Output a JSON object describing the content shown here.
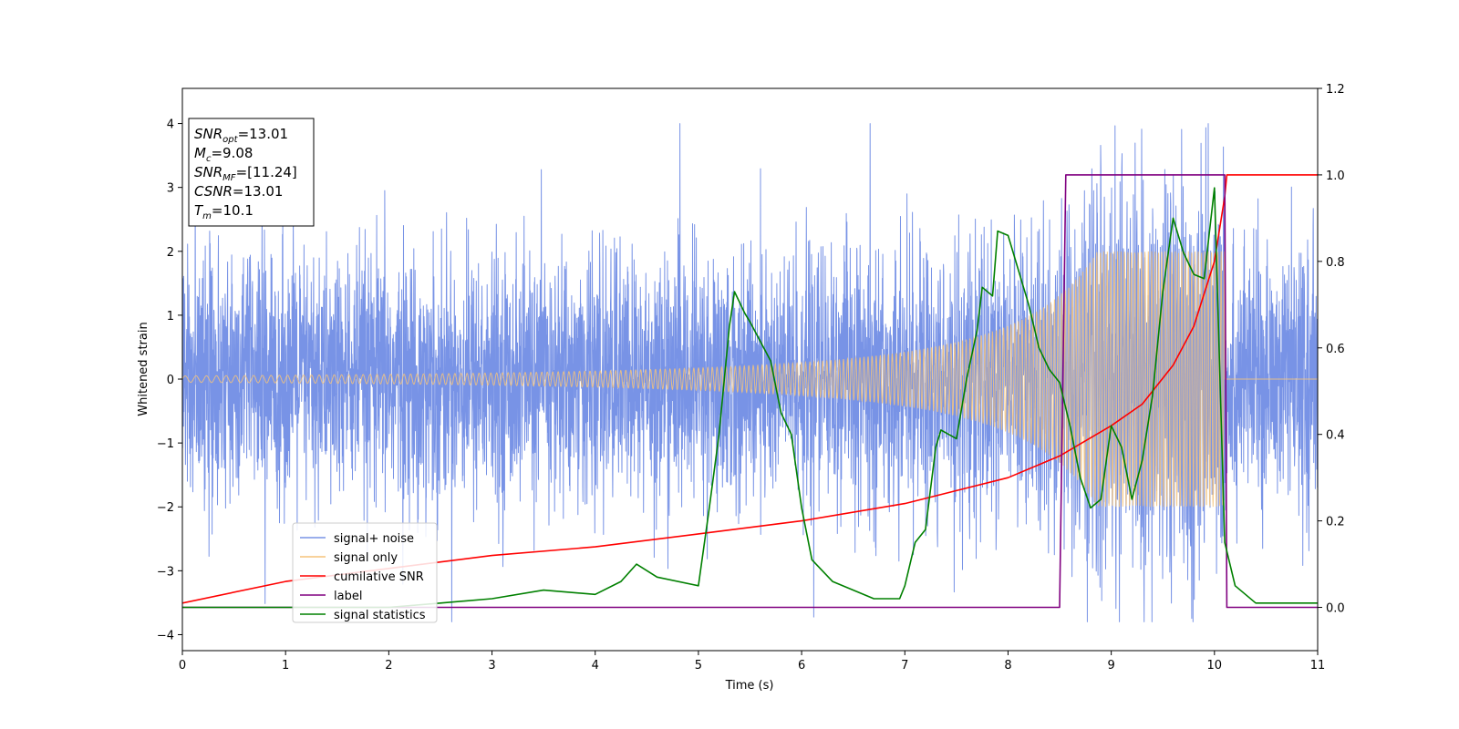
{
  "chart_data": {
    "type": "line",
    "title": "",
    "xlabel": "Time (s)",
    "ylabel": "Whitened strain",
    "xlim": [
      0,
      11
    ],
    "ylim": [
      -4.25,
      4.55
    ],
    "y2lim": [
      -0.1,
      1.2
    ],
    "x_ticks": [
      0,
      1,
      2,
      3,
      4,
      5,
      6,
      7,
      8,
      9,
      10,
      11
    ],
    "y_ticks": [
      -4,
      -3,
      -2,
      -1,
      0,
      1,
      2,
      3,
      4
    ],
    "y2_ticks": [
      0.0,
      0.2,
      0.4,
      0.6,
      0.8,
      1.0,
      1.2
    ],
    "grid": false,
    "legend_position": "lower-left",
    "annotation_lines": [
      {
        "base": "SNR",
        "sub": "opt",
        "value": "=13.01"
      },
      {
        "base": "M",
        "sub": "c",
        "value": "=9.08"
      },
      {
        "base": "SNR",
        "sub": "MF",
        "value": "=[11.24]"
      },
      {
        "base": "CSNR",
        "sub": "",
        "value": "=13.01"
      },
      {
        "base": "T",
        "sub": "m",
        "value": "=10.1"
      }
    ],
    "series": [
      {
        "name": "signal+ noise",
        "color": "#7893e6",
        "axis": "left",
        "description_values": {
          "std": 1.0,
          "range": [
            -3.8,
            4.0
          ]
        }
      },
      {
        "name": "signal only",
        "color": "#f5c37a",
        "axis": "left",
        "chirp": {
          "merger_time": 10.1,
          "start_amplitude": 0.05,
          "peak_amplitude": 2.0
        }
      },
      {
        "name": "cumilative SNR",
        "color": "#ff0000",
        "axis": "right",
        "x": [
          0,
          1,
          2,
          3,
          4,
          5,
          6,
          7,
          7.5,
          8,
          8.5,
          9,
          9.3,
          9.6,
          9.8,
          10.0,
          10.1,
          10.12,
          11
        ],
        "y": [
          0.01,
          0.06,
          0.09,
          0.12,
          0.14,
          0.17,
          0.2,
          0.24,
          0.27,
          0.3,
          0.35,
          0.42,
          0.47,
          0.56,
          0.65,
          0.8,
          0.95,
          1.0,
          1.0
        ]
      },
      {
        "name": "label",
        "color": "#800080",
        "axis": "right",
        "x": [
          0,
          8.5,
          8.56,
          10.1,
          10.12,
          11
        ],
        "y": [
          0,
          0,
          1,
          1,
          0,
          0
        ]
      },
      {
        "name": "signal statistics",
        "color": "#008000",
        "axis": "right",
        "x": [
          0,
          1,
          2,
          2.5,
          3,
          3.5,
          4,
          4.25,
          4.4,
          4.6,
          5.0,
          5.1,
          5.2,
          5.3,
          5.35,
          5.45,
          5.5,
          5.7,
          5.8,
          5.9,
          6.0,
          6.1,
          6.3,
          6.7,
          6.95,
          7.0,
          7.1,
          7.2,
          7.3,
          7.35,
          7.5,
          7.6,
          7.7,
          7.75,
          7.85,
          7.9,
          8.0,
          8.2,
          8.3,
          8.4,
          8.5,
          8.6,
          8.7,
          8.8,
          8.9,
          9.0,
          9.1,
          9.2,
          9.3,
          9.4,
          9.5,
          9.6,
          9.7,
          9.8,
          9.9,
          10.0,
          10.1,
          10.2,
          10.4,
          11
        ],
        "y": [
          0.0,
          0.0,
          0.0,
          0.01,
          0.02,
          0.04,
          0.03,
          0.06,
          0.1,
          0.07,
          0.05,
          0.22,
          0.4,
          0.65,
          0.73,
          0.68,
          0.66,
          0.57,
          0.45,
          0.4,
          0.23,
          0.11,
          0.06,
          0.02,
          0.02,
          0.05,
          0.15,
          0.18,
          0.37,
          0.41,
          0.39,
          0.53,
          0.64,
          0.74,
          0.72,
          0.87,
          0.86,
          0.7,
          0.6,
          0.55,
          0.52,
          0.42,
          0.3,
          0.23,
          0.25,
          0.42,
          0.37,
          0.25,
          0.34,
          0.49,
          0.73,
          0.9,
          0.82,
          0.77,
          0.76,
          0.97,
          0.15,
          0.05,
          0.01,
          0.01
        ]
      }
    ]
  }
}
